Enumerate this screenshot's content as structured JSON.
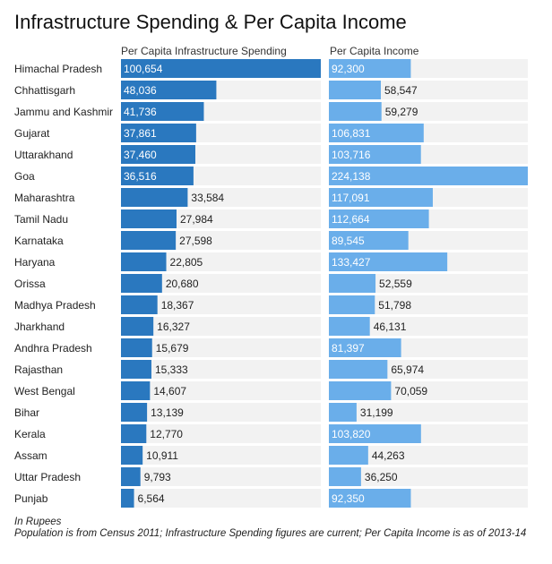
{
  "chart_data": {
    "type": "bar",
    "title": "Infrastructure Spending & Per Capita Income",
    "categories": [
      "Himachal Pradesh",
      "Chhattisgarh",
      "Jammu and Kashmir",
      "Gujarat",
      "Uttarakhand",
      "Goa",
      "Maharashtra",
      "Tamil Nadu",
      "Karnataka",
      "Haryana",
      "Orissa",
      "Madhya Pradesh",
      "Jharkhand",
      "Andhra Pradesh",
      "Rajasthan",
      "West Bengal",
      "Bihar",
      "Kerala",
      "Assam",
      "Uttar Pradesh",
      "Punjab"
    ],
    "series": [
      {
        "name": "Per Capita Infrastructure Spending",
        "values": [
          100654,
          48036,
          41736,
          37861,
          37460,
          36516,
          33584,
          27984,
          27598,
          22805,
          20680,
          18367,
          16327,
          15679,
          15333,
          14607,
          13139,
          12770,
          10911,
          9793,
          6564
        ],
        "labels": [
          "100,654",
          "48,036",
          "41,736",
          "37,861",
          "37,460",
          "36,516",
          "33,584",
          "27,984",
          "27,598",
          "22,805",
          "20,680",
          "18,367",
          "16,327",
          "15,679",
          "15,333",
          "14,607",
          "13,139",
          "12,770",
          "10,911",
          "9,793",
          "6,564"
        ],
        "color": "#2a78bf",
        "max": 100654
      },
      {
        "name": "Per Capita Income",
        "values": [
          92300,
          58547,
          59279,
          106831,
          103716,
          224138,
          117091,
          112664,
          89545,
          133427,
          52559,
          51798,
          46131,
          81397,
          65974,
          70059,
          31199,
          103820,
          44263,
          36250,
          92350
        ],
        "labels": [
          "92,300",
          "58,547",
          "59,279",
          "106,831",
          "103,716",
          "224,138",
          "117,091",
          "112,664",
          "89,545",
          "133,427",
          "52,559",
          "51,798",
          "46,131",
          "81,397",
          "65,974",
          "70,059",
          "31,199",
          "103,820",
          "44,263",
          "36,250",
          "92,350"
        ],
        "color": "#6aaeea",
        "max": 224138
      }
    ],
    "background_color": "#f2f2f2"
  },
  "notes": {
    "unit": "In Rupees",
    "source": "Population is from Census 2011; Infrastructure Spending figures are current; Per Capita Income is as of 2013-14"
  }
}
